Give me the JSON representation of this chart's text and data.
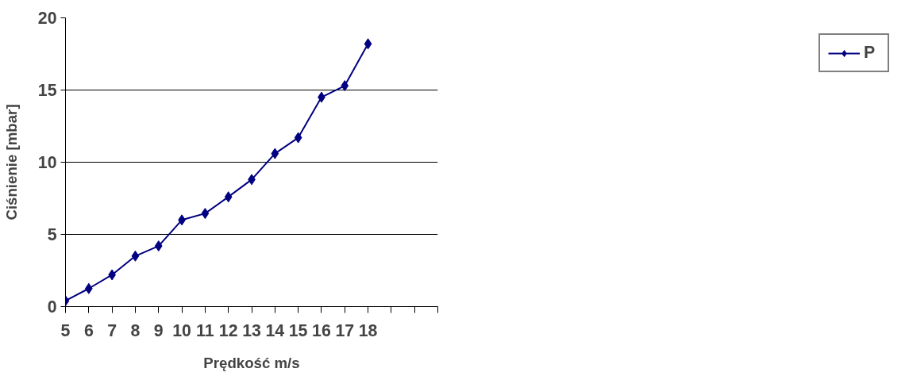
{
  "chart_data": {
    "type": "line",
    "xlabel": "Prędkość m/s",
    "ylabel": "Ciśnienie [mbar]",
    "x": [
      5,
      6,
      7,
      8,
      9,
      10,
      11,
      12,
      13,
      14,
      15,
      16,
      17,
      18
    ],
    "series": [
      {
        "name": "P",
        "color": "#000080",
        "values": [
          0.4,
          1.25,
          2.2,
          3.5,
          4.2,
          6.0,
          6.45,
          7.6,
          8.8,
          10.6,
          11.7,
          14.5,
          15.3,
          18.2
        ]
      }
    ],
    "xlim": [
      5,
      21
    ],
    "xticks": [
      5,
      6,
      7,
      8,
      9,
      10,
      11,
      12,
      13,
      14,
      15,
      16,
      17,
      18,
      {
        "value": 19,
        "label": null
      },
      {
        "value": 20,
        "label": null
      },
      {
        "value": 21,
        "label": null
      }
    ],
    "ylim": [
      0,
      20
    ],
    "yticks": [
      0,
      5,
      10,
      15,
      20
    ],
    "grid": "y",
    "legend": "right",
    "marker": "diamond",
    "line_style": "solid"
  }
}
